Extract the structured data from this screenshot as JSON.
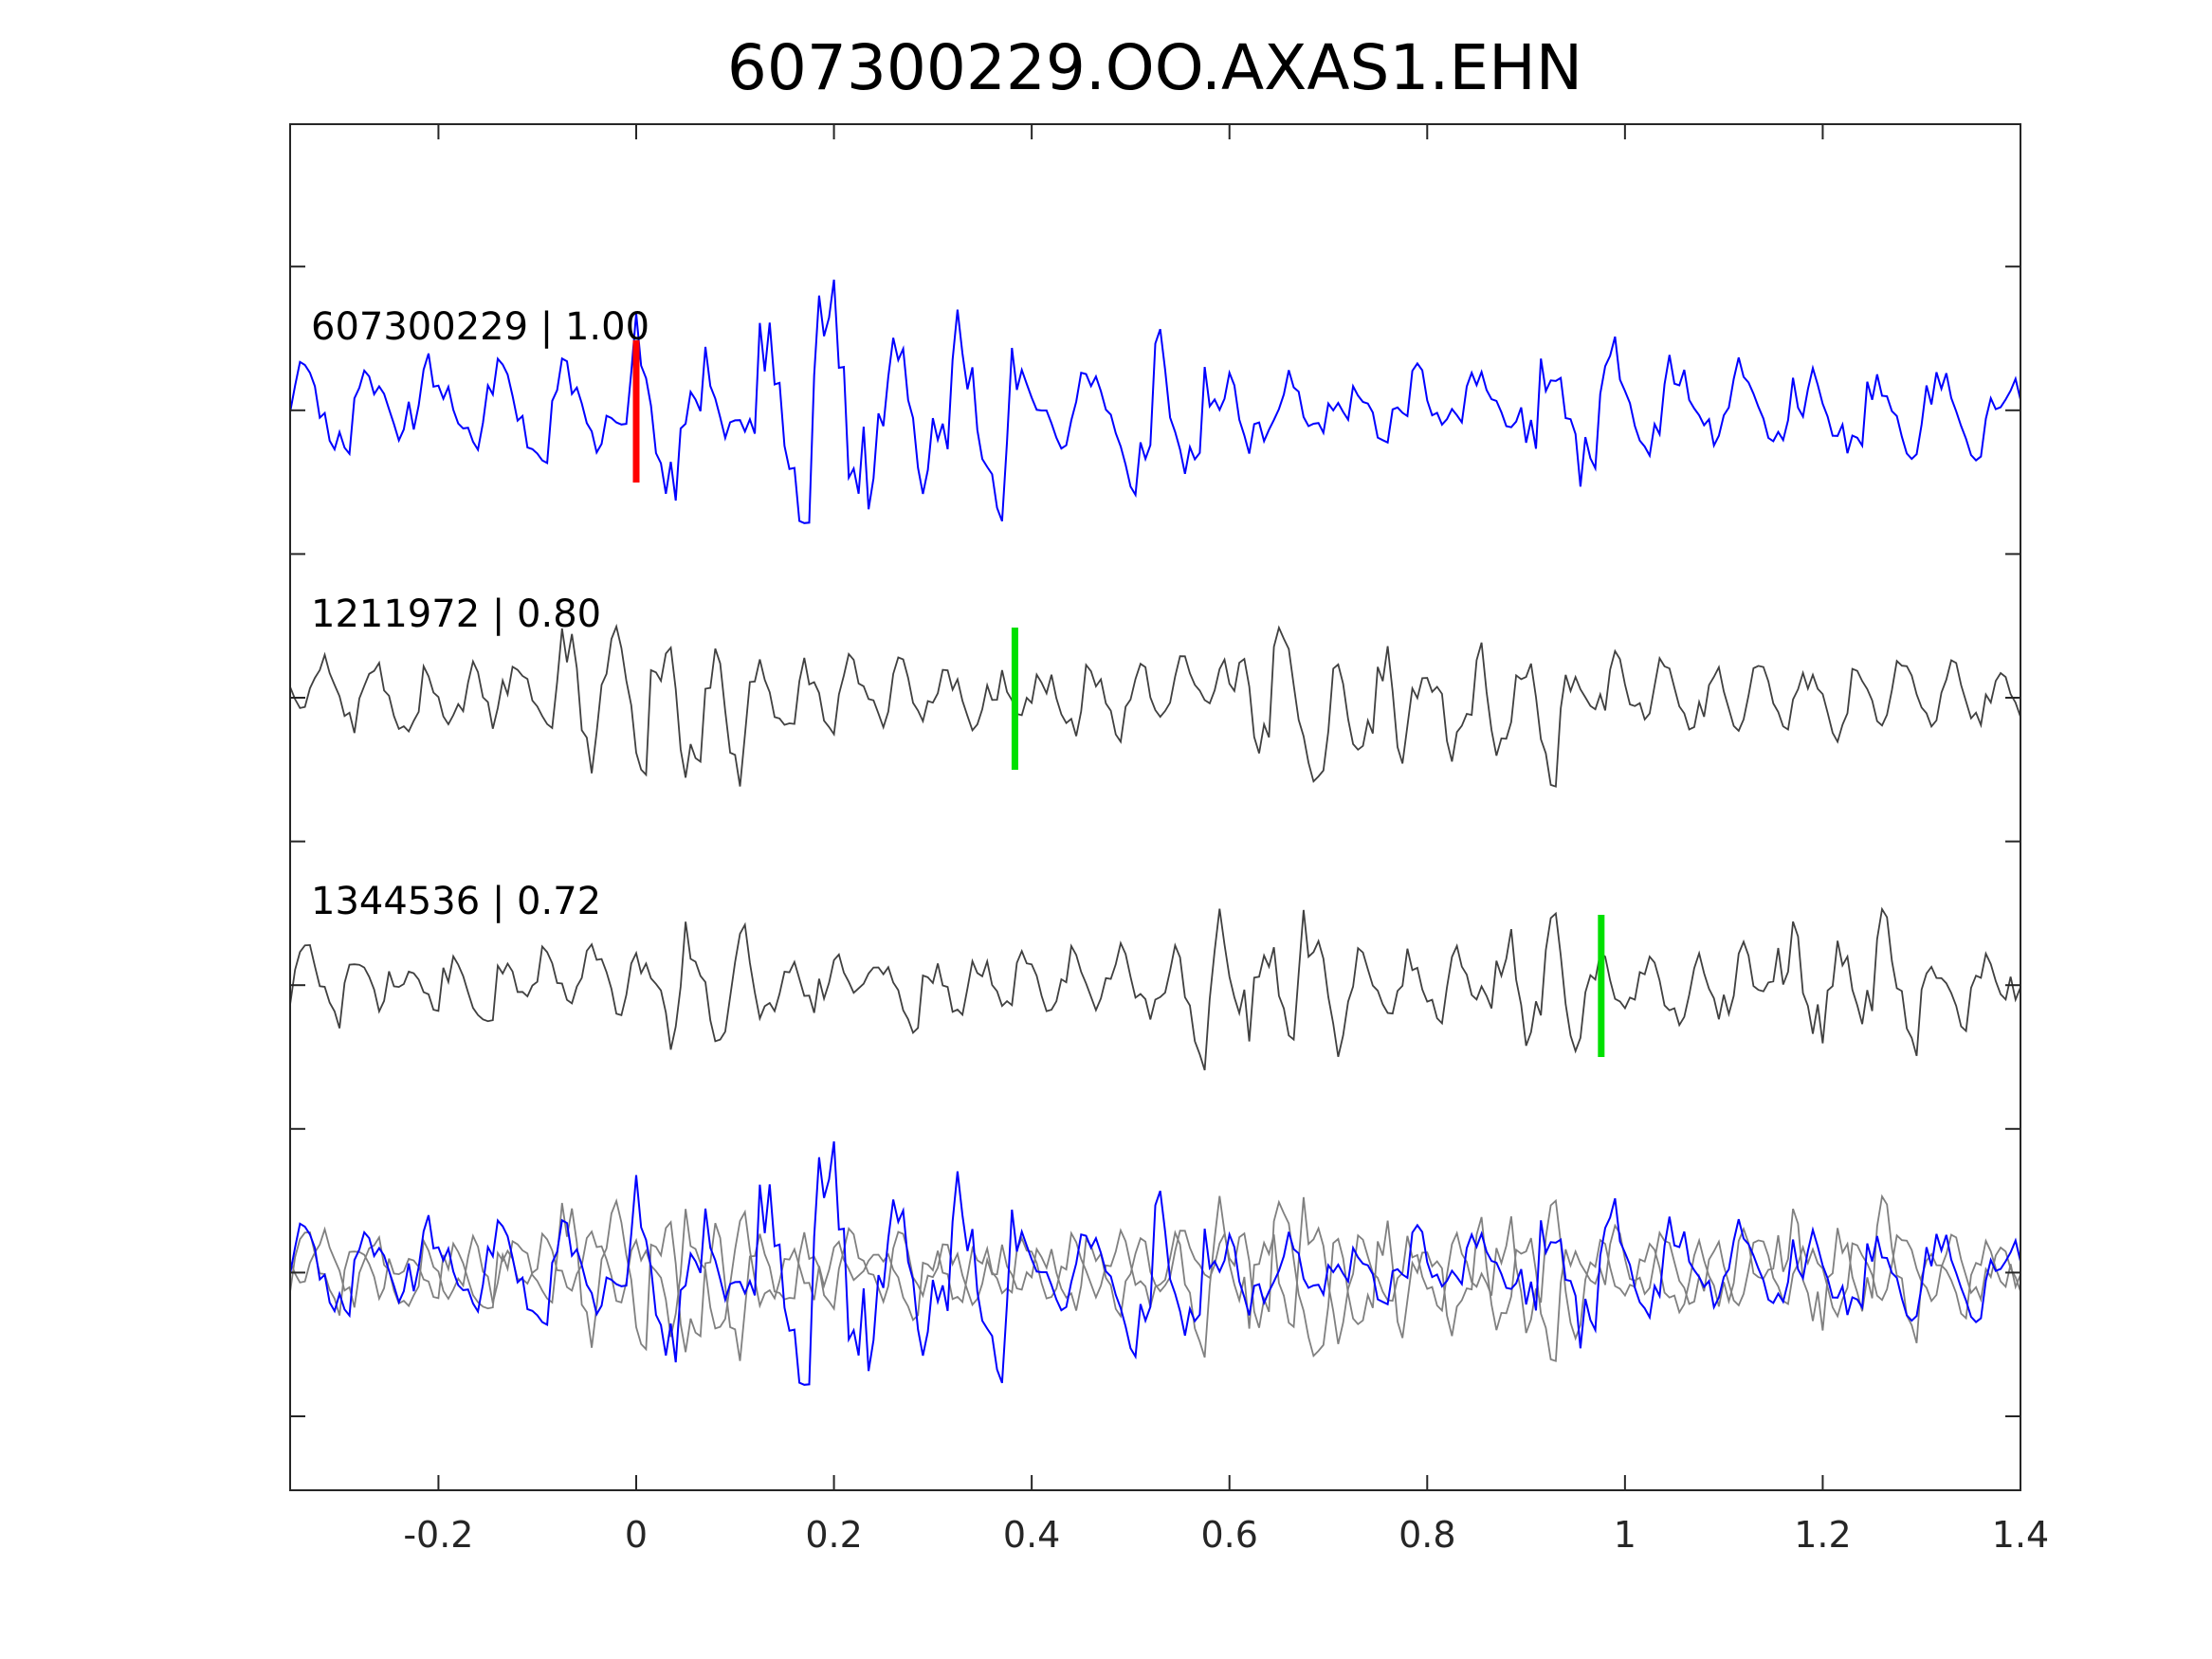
{
  "chart_data": {
    "type": "line",
    "title": "607300229.OO.AXAS1.EHN",
    "xlabel": "",
    "ylabel": "",
    "xlim": [
      -0.35,
      1.4
    ],
    "x_ticks": [
      -0.2,
      0,
      0.2,
      0.4,
      0.6,
      0.8,
      1,
      1.2,
      1.4
    ],
    "x_tick_labels": [
      "-0.2",
      "0",
      "0.2",
      "0.4",
      "0.6",
      "0.8",
      "1",
      "1.2",
      "1.4"
    ],
    "y_tick_count": 9,
    "y_tick_labels": [],
    "grid": false,
    "sample_interval": 0.005,
    "colors": {
      "master": "#0000ff",
      "neighbor": "#404040",
      "overlay_neighbor": "#808080",
      "master_pick": "#ff0000",
      "neighbor_pick": "#00e000",
      "axes": "#262626"
    },
    "traces": [
      {
        "label": "607300229 | 1.00",
        "role": "master",
        "pick_time": 0.0,
        "seed": 7,
        "amplitude": 0.62,
        "wavelets": [
          [
            0.18,
            0.24,
            0.5
          ],
          [
            0.0,
            0.08,
            0.6
          ],
          [
            0.12,
            0.22,
            0.7
          ],
          [
            0.22,
            0.38,
            0.6
          ],
          [
            0.5,
            0.62,
            0.4
          ],
          [
            0.9,
            1.0,
            0.35
          ]
        ]
      },
      {
        "label": "1211972 | 0.80",
        "role": "neighbor",
        "pick_time": 0.383,
        "seed": 19,
        "amplitude": 0.5,
        "wavelets": [
          [
            -0.08,
            0.12,
            0.6
          ],
          [
            0.6,
            0.78,
            0.55
          ],
          [
            0.82,
            0.93,
            0.5
          ]
        ]
      },
      {
        "label": "1344536 | 0.72",
        "role": "neighbor",
        "pick_time": 0.976,
        "seed": 31,
        "amplitude": 0.5,
        "wavelets": [
          [
            0.02,
            0.12,
            0.45
          ],
          [
            0.54,
            0.73,
            0.6
          ],
          [
            0.88,
            0.96,
            0.55
          ],
          [
            1.15,
            1.3,
            0.4
          ]
        ]
      }
    ]
  }
}
